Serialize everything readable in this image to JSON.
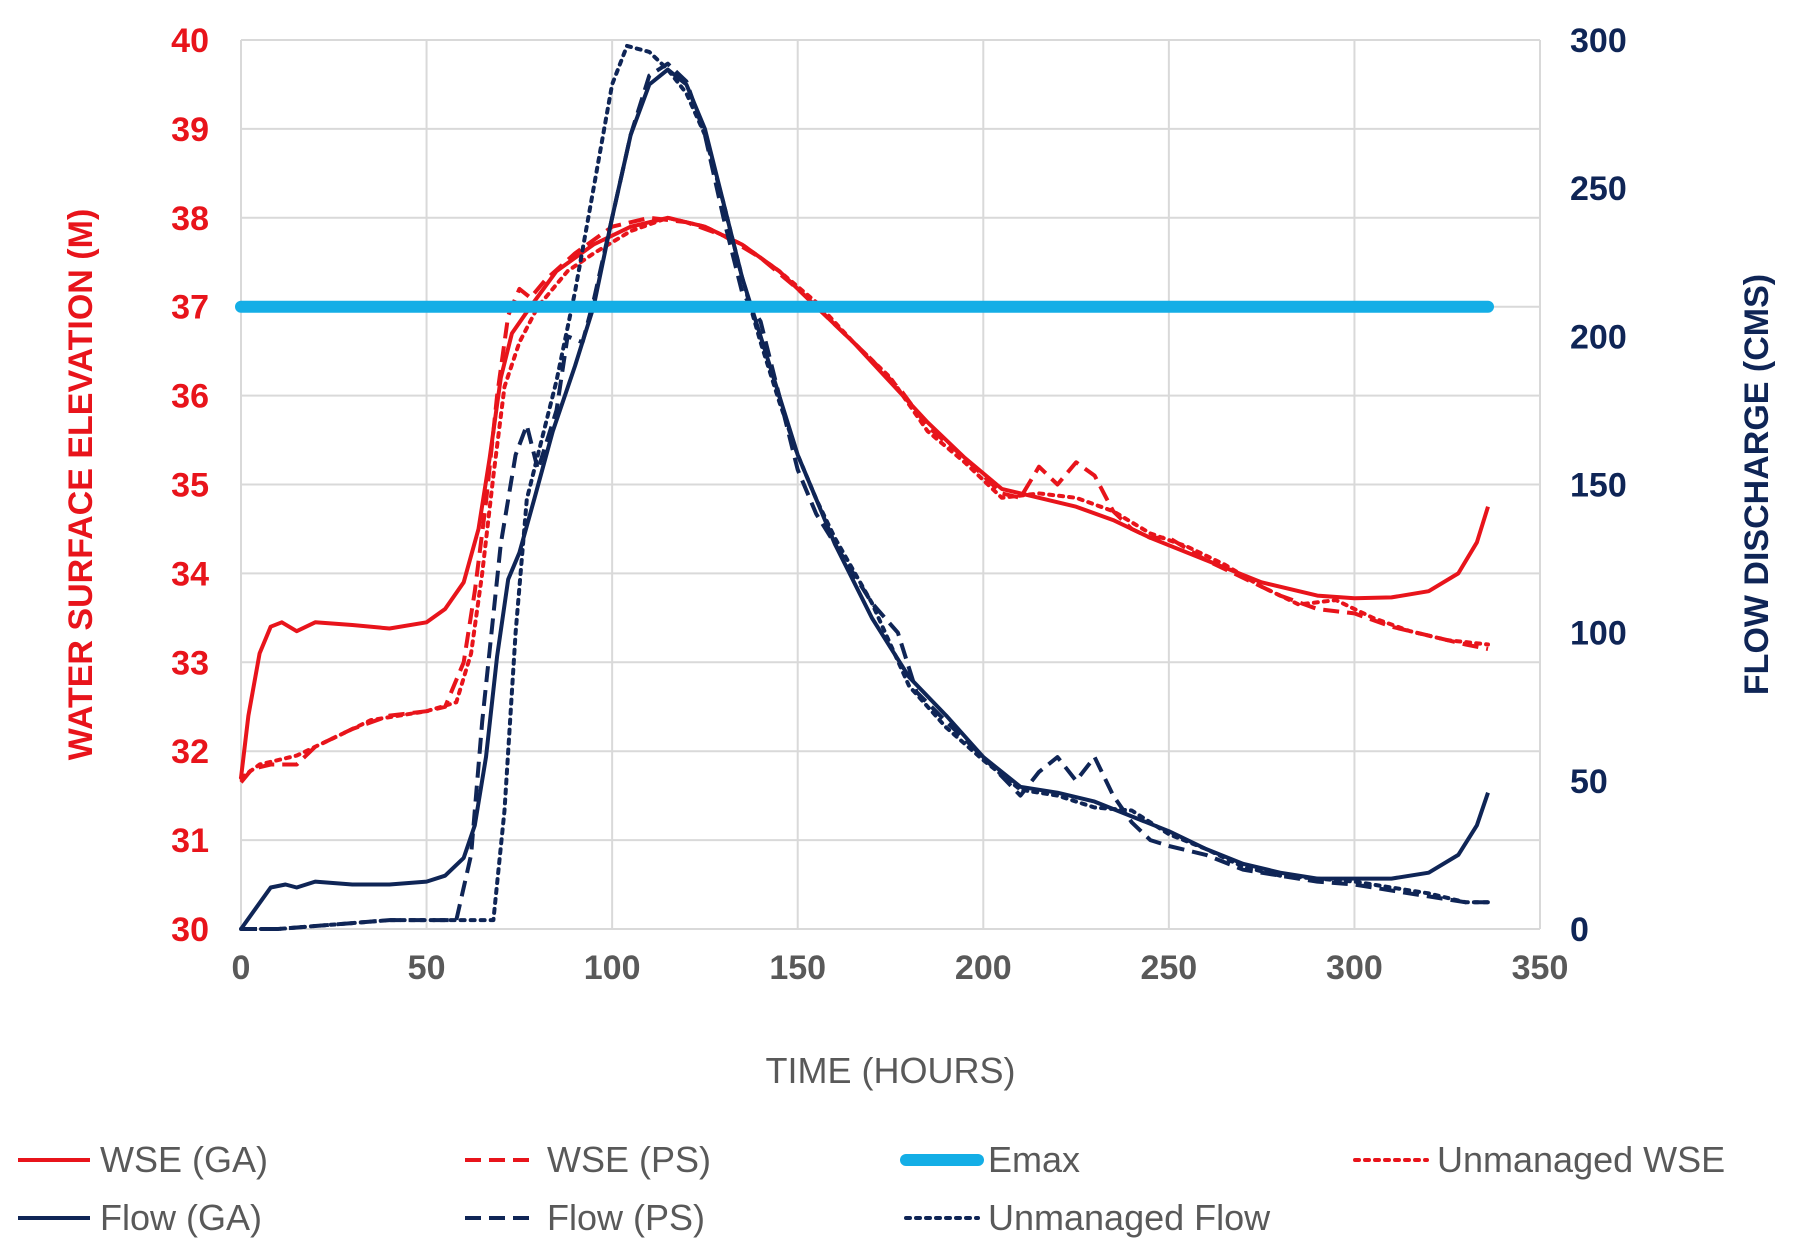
{
  "chart_data": {
    "type": "line",
    "xlabel": "TIME (HOURS)",
    "ylabel_left": "WATER SURFACE ELEVATION  (M)",
    "ylabel_right": "FLOW DISCHARGE  (CMS)",
    "xlim": [
      0,
      350
    ],
    "x_ticks": [
      0,
      50,
      100,
      150,
      200,
      250,
      300,
      350
    ],
    "ylim_left": [
      30,
      40
    ],
    "y_ticks_left": [
      30,
      31,
      32,
      33,
      34,
      35,
      36,
      37,
      38,
      39,
      40
    ],
    "ylim_right": [
      0,
      300
    ],
    "y_ticks_right": [
      0,
      50,
      100,
      150,
      200,
      250,
      300
    ],
    "grid": true,
    "legend_position": "bottom",
    "colors": {
      "wse": "#e8141b",
      "flow": "#0f2556",
      "emax": "#14aee6",
      "grid": "#d9d9d9",
      "text": "#595959"
    },
    "series": [
      {
        "name": "WSE (GA)",
        "axis": "left",
        "style": "solid",
        "color": "#e8141b",
        "width": 4,
        "points": [
          [
            0,
            31.7
          ],
          [
            2,
            32.4
          ],
          [
            5,
            33.1
          ],
          [
            8,
            33.4
          ],
          [
            11,
            33.45
          ],
          [
            15,
            33.35
          ],
          [
            20,
            33.45
          ],
          [
            30,
            33.42
          ],
          [
            40,
            33.38
          ],
          [
            50,
            33.45
          ],
          [
            55,
            33.6
          ],
          [
            60,
            33.9
          ],
          [
            64,
            34.5
          ],
          [
            67,
            35.3
          ],
          [
            70,
            36.2
          ],
          [
            73,
            36.7
          ],
          [
            78,
            37.0
          ],
          [
            85,
            37.4
          ],
          [
            95,
            37.7
          ],
          [
            105,
            37.9
          ],
          [
            115,
            38.0
          ],
          [
            125,
            37.9
          ],
          [
            135,
            37.7
          ],
          [
            145,
            37.4
          ],
          [
            155,
            37.0
          ],
          [
            165,
            36.6
          ],
          [
            175,
            36.15
          ],
          [
            185,
            35.7
          ],
          [
            195,
            35.3
          ],
          [
            205,
            34.95
          ],
          [
            215,
            34.85
          ],
          [
            225,
            34.75
          ],
          [
            235,
            34.6
          ],
          [
            245,
            34.4
          ],
          [
            260,
            34.15
          ],
          [
            275,
            33.9
          ],
          [
            290,
            33.75
          ],
          [
            300,
            33.72
          ],
          [
            310,
            33.73
          ],
          [
            320,
            33.8
          ],
          [
            328,
            34.0
          ],
          [
            333,
            34.35
          ],
          [
            336,
            34.75
          ]
        ]
      },
      {
        "name": "WSE (PS)",
        "axis": "left",
        "style": "dashed",
        "color": "#e8141b",
        "width": 4,
        "points": [
          [
            0,
            31.65
          ],
          [
            3,
            31.8
          ],
          [
            8,
            31.85
          ],
          [
            15,
            31.85
          ],
          [
            20,
            32.05
          ],
          [
            30,
            32.25
          ],
          [
            40,
            32.4
          ],
          [
            50,
            32.45
          ],
          [
            55,
            32.5
          ],
          [
            60,
            33.0
          ],
          [
            63,
            33.8
          ],
          [
            66,
            34.8
          ],
          [
            69,
            36.0
          ],
          [
            72,
            36.9
          ],
          [
            75,
            37.2
          ],
          [
            78,
            37.1
          ],
          [
            82,
            37.3
          ],
          [
            90,
            37.6
          ],
          [
            100,
            37.9
          ],
          [
            110,
            38.0
          ],
          [
            120,
            37.95
          ],
          [
            130,
            37.8
          ],
          [
            140,
            37.55
          ],
          [
            150,
            37.2
          ],
          [
            160,
            36.8
          ],
          [
            170,
            36.4
          ],
          [
            178,
            36.05
          ],
          [
            185,
            35.65
          ],
          [
            195,
            35.3
          ],
          [
            205,
            34.9
          ],
          [
            210,
            34.85
          ],
          [
            215,
            35.2
          ],
          [
            220,
            35.0
          ],
          [
            225,
            35.25
          ],
          [
            230,
            35.1
          ],
          [
            235,
            34.7
          ],
          [
            240,
            34.5
          ],
          [
            245,
            34.4
          ],
          [
            250,
            34.4
          ],
          [
            260,
            34.15
          ],
          [
            270,
            33.95
          ],
          [
            280,
            33.75
          ],
          [
            290,
            33.6
          ],
          [
            300,
            33.55
          ],
          [
            310,
            33.4
          ],
          [
            320,
            33.3
          ],
          [
            330,
            33.2
          ],
          [
            336,
            33.15
          ]
        ]
      },
      {
        "name": "Emax",
        "axis": "left",
        "style": "thick",
        "color": "#14aee6",
        "width": 12,
        "points": [
          [
            0,
            37.0
          ],
          [
            336,
            37.0
          ]
        ]
      },
      {
        "name": "Unmanaged WSE",
        "axis": "left",
        "style": "dotted",
        "color": "#e8141b",
        "width": 4,
        "points": [
          [
            0,
            31.7
          ],
          [
            5,
            31.85
          ],
          [
            15,
            31.95
          ],
          [
            25,
            32.15
          ],
          [
            35,
            32.35
          ],
          [
            50,
            32.45
          ],
          [
            58,
            32.55
          ],
          [
            62,
            33.1
          ],
          [
            65,
            34.0
          ],
          [
            68,
            35.1
          ],
          [
            71,
            36.1
          ],
          [
            75,
            36.6
          ],
          [
            80,
            37.0
          ],
          [
            88,
            37.4
          ],
          [
            95,
            37.6
          ],
          [
            105,
            37.85
          ],
          [
            115,
            38.0
          ],
          [
            125,
            37.9
          ],
          [
            135,
            37.7
          ],
          [
            145,
            37.4
          ],
          [
            155,
            37.05
          ],
          [
            165,
            36.6
          ],
          [
            175,
            36.2
          ],
          [
            185,
            35.6
          ],
          [
            195,
            35.25
          ],
          [
            205,
            34.85
          ],
          [
            215,
            34.9
          ],
          [
            225,
            34.85
          ],
          [
            235,
            34.7
          ],
          [
            245,
            34.45
          ],
          [
            255,
            34.3
          ],
          [
            265,
            34.1
          ],
          [
            275,
            33.85
          ],
          [
            285,
            33.65
          ],
          [
            295,
            33.7
          ],
          [
            305,
            33.5
          ],
          [
            315,
            33.35
          ],
          [
            325,
            33.25
          ],
          [
            336,
            33.2
          ]
        ]
      },
      {
        "name": "Flow (GA)",
        "axis": "right",
        "style": "solid",
        "color": "#0f2556",
        "width": 4,
        "points": [
          [
            0,
            0
          ],
          [
            4,
            7
          ],
          [
            8,
            14
          ],
          [
            12,
            15
          ],
          [
            15,
            14
          ],
          [
            20,
            16
          ],
          [
            30,
            15
          ],
          [
            40,
            15
          ],
          [
            50,
            16
          ],
          [
            55,
            18
          ],
          [
            60,
            24
          ],
          [
            63,
            35
          ],
          [
            66,
            58
          ],
          [
            69,
            92
          ],
          [
            72,
            118
          ],
          [
            75,
            127
          ],
          [
            79,
            145
          ],
          [
            84,
            168
          ],
          [
            90,
            190
          ],
          [
            95,
            210
          ],
          [
            100,
            240
          ],
          [
            105,
            268
          ],
          [
            110,
            285
          ],
          [
            115,
            290
          ],
          [
            120,
            285
          ],
          [
            125,
            270
          ],
          [
            130,
            245
          ],
          [
            135,
            220
          ],
          [
            140,
            200
          ],
          [
            145,
            180
          ],
          [
            150,
            160
          ],
          [
            155,
            145
          ],
          [
            160,
            130
          ],
          [
            170,
            105
          ],
          [
            180,
            85
          ],
          [
            190,
            72
          ],
          [
            200,
            58
          ],
          [
            210,
            48
          ],
          [
            220,
            46
          ],
          [
            230,
            43
          ],
          [
            240,
            38
          ],
          [
            250,
            33
          ],
          [
            260,
            27
          ],
          [
            270,
            22
          ],
          [
            280,
            19
          ],
          [
            290,
            17
          ],
          [
            300,
            17
          ],
          [
            310,
            17
          ],
          [
            320,
            19
          ],
          [
            328,
            25
          ],
          [
            333,
            35
          ],
          [
            336,
            46
          ]
        ]
      },
      {
        "name": "Flow (PS)",
        "axis": "right",
        "style": "dashed",
        "color": "#0f2556",
        "width": 4,
        "points": [
          [
            0,
            0
          ],
          [
            10,
            0
          ],
          [
            20,
            1
          ],
          [
            30,
            2
          ],
          [
            40,
            3
          ],
          [
            50,
            3
          ],
          [
            58,
            3
          ],
          [
            62,
            25
          ],
          [
            65,
            70
          ],
          [
            70,
            130
          ],
          [
            74,
            160
          ],
          [
            77,
            170
          ],
          [
            80,
            155
          ],
          [
            85,
            175
          ],
          [
            88,
            200
          ],
          [
            92,
            198
          ],
          [
            95,
            212
          ],
          [
            100,
            240
          ],
          [
            105,
            268
          ],
          [
            110,
            288
          ],
          [
            115,
            292
          ],
          [
            120,
            286
          ],
          [
            125,
            268
          ],
          [
            130,
            240
          ],
          [
            135,
            215
          ],
          [
            140,
            205
          ],
          [
            145,
            180
          ],
          [
            150,
            155
          ],
          [
            155,
            140
          ],
          [
            160,
            130
          ],
          [
            170,
            110
          ],
          [
            177,
            100
          ],
          [
            182,
            80
          ],
          [
            190,
            70
          ],
          [
            200,
            58
          ],
          [
            210,
            45
          ],
          [
            215,
            53
          ],
          [
            220,
            58
          ],
          [
            225,
            50
          ],
          [
            230,
            58
          ],
          [
            235,
            45
          ],
          [
            240,
            36
          ],
          [
            245,
            30
          ],
          [
            250,
            28
          ],
          [
            260,
            25
          ],
          [
            270,
            20
          ],
          [
            280,
            18
          ],
          [
            290,
            16
          ],
          [
            300,
            15
          ],
          [
            310,
            13
          ],
          [
            320,
            11
          ],
          [
            330,
            9
          ],
          [
            336,
            9
          ]
        ]
      },
      {
        "name": "Unmanaged Flow",
        "axis": "right",
        "style": "dotted",
        "color": "#0f2556",
        "width": 4,
        "points": [
          [
            0,
            0
          ],
          [
            10,
            0
          ],
          [
            20,
            1
          ],
          [
            30,
            2
          ],
          [
            40,
            3
          ],
          [
            50,
            3
          ],
          [
            60,
            3
          ],
          [
            68,
            3
          ],
          [
            71,
            40
          ],
          [
            74,
            100
          ],
          [
            77,
            145
          ],
          [
            80,
            160
          ],
          [
            85,
            185
          ],
          [
            90,
            215
          ],
          [
            95,
            250
          ],
          [
            100,
            285
          ],
          [
            104,
            298
          ],
          [
            110,
            296
          ],
          [
            115,
            290
          ],
          [
            120,
            282
          ],
          [
            125,
            268
          ],
          [
            130,
            245
          ],
          [
            135,
            220
          ],
          [
            140,
            198
          ],
          [
            145,
            178
          ],
          [
            150,
            160
          ],
          [
            155,
            145
          ],
          [
            160,
            132
          ],
          [
            170,
            110
          ],
          [
            180,
            82
          ],
          [
            190,
            68
          ],
          [
            200,
            57
          ],
          [
            210,
            47
          ],
          [
            220,
            45
          ],
          [
            230,
            41
          ],
          [
            240,
            40
          ],
          [
            250,
            32
          ],
          [
            260,
            27
          ],
          [
            270,
            21
          ],
          [
            280,
            18
          ],
          [
            290,
            17
          ],
          [
            300,
            16
          ],
          [
            310,
            14
          ],
          [
            320,
            12
          ],
          [
            330,
            9
          ],
          [
            336,
            9
          ]
        ]
      }
    ]
  }
}
